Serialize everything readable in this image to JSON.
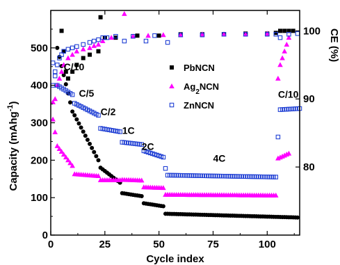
{
  "chart_data": {
    "type": "scatter",
    "xlabel": "Cycle index",
    "ylabel_left": "Capacity (mAhg⁻¹)",
    "ylabel_right": "CE (%)",
    "xlim": [
      0,
      115
    ],
    "ylim_left": [
      0,
      600
    ],
    "ylim_right": [
      70,
      103
    ],
    "x_ticks": [
      0,
      25,
      50,
      75,
      100
    ],
    "y_ticks_left": [
      0,
      100,
      200,
      300,
      400,
      500
    ],
    "y_ticks_right": [
      80,
      90,
      100
    ],
    "rate_labels": [
      {
        "text": "C/10",
        "x": 6,
        "y": 440
      },
      {
        "text": "C/5",
        "x": 13,
        "y": 370
      },
      {
        "text": "C/2",
        "x": 23,
        "y": 320
      },
      {
        "text": "1C",
        "x": 33,
        "y": 270
      },
      {
        "text": "2C",
        "x": 42,
        "y": 228
      },
      {
        "text": "4C",
        "x": 75,
        "y": 196
      },
      {
        "text": "C/10",
        "x": 105,
        "y": 367
      }
    ],
    "series": [
      {
        "name": "PbNCN",
        "marker": "square-filled",
        "color": "#000000",
        "capacity_segments": [
          {
            "start": 3,
            "end": 10,
            "from": 500,
            "to": 330
          },
          {
            "start": 11,
            "end": 22,
            "from": 320,
            "to": 200
          },
          {
            "start": 23,
            "end": 32,
            "from": 180,
            "to": 140
          },
          {
            "start": 33,
            "end": 42,
            "from": 112,
            "to": 104
          },
          {
            "start": 43,
            "end": 52,
            "from": 85,
            "to": 77
          },
          {
            "start": 53,
            "end": 114,
            "from": 57,
            "to": 47
          }
        ],
        "ce_points": [
          {
            "x": 5,
            "y": 100
          },
          {
            "x": 6,
            "y": 97
          },
          {
            "x": 7,
            "y": 94
          },
          {
            "x": 8,
            "y": 93
          },
          {
            "x": 10,
            "y": 94
          },
          {
            "x": 12,
            "y": 95
          },
          {
            "x": 15,
            "y": 96
          },
          {
            "x": 18,
            "y": 96.5
          },
          {
            "x": 22,
            "y": 97
          },
          {
            "x": 23,
            "y": 102
          },
          {
            "x": 25,
            "y": 99
          },
          {
            "x": 30,
            "y": 99
          },
          {
            "x": 40,
            "y": 99.3
          },
          {
            "x": 50,
            "y": 99.3
          },
          {
            "x": 60,
            "y": 99.5
          },
          {
            "x": 70,
            "y": 99.5
          },
          {
            "x": 80,
            "y": 99.5
          },
          {
            "x": 90,
            "y": 99.6
          },
          {
            "x": 100,
            "y": 99.6
          },
          {
            "x": 104,
            "y": 99.7
          },
          {
            "x": 106,
            "y": 100
          },
          {
            "x": 108,
            "y": 100
          },
          {
            "x": 110,
            "y": 100
          },
          {
            "x": 112,
            "y": 100
          }
        ]
      },
      {
        "name": "Ag2NCN",
        "marker": "triangle-filled",
        "color": "#ff00ff",
        "capacity_segments": [
          {
            "start": 1,
            "end": 1,
            "from": 355,
            "to": 355
          },
          {
            "start": 2,
            "end": 2,
            "from": 275,
            "to": 275
          },
          {
            "start": 3,
            "end": 10,
            "from": 238,
            "to": 185
          },
          {
            "start": 11,
            "end": 22,
            "from": 163,
            "to": 158
          },
          {
            "start": 23,
            "end": 32,
            "from": 147,
            "to": 147
          },
          {
            "start": 33,
            "end": 42,
            "from": 148,
            "to": 146
          },
          {
            "start": 43,
            "end": 52,
            "from": 128,
            "to": 126
          },
          {
            "start": 53,
            "end": 104,
            "from": 108,
            "to": 106
          },
          {
            "start": 105,
            "end": 110,
            "from": 205,
            "to": 218
          }
        ],
        "ce_points": [
          {
            "x": 1,
            "y": 87
          },
          {
            "x": 2,
            "y": 90
          },
          {
            "x": 3,
            "y": 92
          },
          {
            "x": 4,
            "y": 93
          },
          {
            "x": 5,
            "y": 94
          },
          {
            "x": 6,
            "y": 95
          },
          {
            "x": 8,
            "y": 96
          },
          {
            "x": 10,
            "y": 96.5
          },
          {
            "x": 12,
            "y": 97
          },
          {
            "x": 15,
            "y": 97.3
          },
          {
            "x": 18,
            "y": 97.5
          },
          {
            "x": 20,
            "y": 97.8
          },
          {
            "x": 22,
            "y": 98
          },
          {
            "x": 24,
            "y": 98.5
          },
          {
            "x": 28,
            "y": 99
          },
          {
            "x": 34,
            "y": 102.5
          },
          {
            "x": 38,
            "y": 99.2
          },
          {
            "x": 45,
            "y": 99.3
          },
          {
            "x": 52,
            "y": 99.4
          },
          {
            "x": 60,
            "y": 99.4
          },
          {
            "x": 70,
            "y": 99.5
          },
          {
            "x": 80,
            "y": 99.5
          },
          {
            "x": 90,
            "y": 99.5
          },
          {
            "x": 100,
            "y": 99.6
          },
          {
            "x": 105,
            "y": 93
          },
          {
            "x": 106,
            "y": 95
          },
          {
            "x": 107,
            "y": 96
          },
          {
            "x": 108,
            "y": 97
          },
          {
            "x": 109,
            "y": 98
          },
          {
            "x": 110,
            "y": 99
          }
        ]
      },
      {
        "name": "ZnNCN",
        "marker": "square-open",
        "color": "#1f3fd4",
        "capacity_segments": [
          {
            "start": 1,
            "end": 1,
            "from": 460,
            "to": 460
          },
          {
            "start": 2,
            "end": 2,
            "from": 425,
            "to": 425
          },
          {
            "start": 3,
            "end": 10,
            "from": 400,
            "to": 375
          },
          {
            "start": 11,
            "end": 22,
            "from": 352,
            "to": 320
          },
          {
            "start": 23,
            "end": 32,
            "from": 285,
            "to": 276
          },
          {
            "start": 33,
            "end": 42,
            "from": 248,
            "to": 242
          },
          {
            "start": 43,
            "end": 52,
            "from": 225,
            "to": 208
          },
          {
            "start": 53,
            "end": 53,
            "from": 178,
            "to": 178
          },
          {
            "start": 54,
            "end": 104,
            "from": 160,
            "to": 155
          },
          {
            "start": 105,
            "end": 105,
            "from": 262,
            "to": 262
          },
          {
            "start": 106,
            "end": 115,
            "from": 335,
            "to": 338
          }
        ],
        "ce_points": [
          {
            "x": 1,
            "y": 92
          },
          {
            "x": 2,
            "y": 94
          },
          {
            "x": 3,
            "y": 95
          },
          {
            "x": 4,
            "y": 96
          },
          {
            "x": 5,
            "y": 96.5
          },
          {
            "x": 6,
            "y": 97
          },
          {
            "x": 8,
            "y": 97.3
          },
          {
            "x": 10,
            "y": 97.5
          },
          {
            "x": 12,
            "y": 97.7
          },
          {
            "x": 15,
            "y": 98
          },
          {
            "x": 18,
            "y": 98.3
          },
          {
            "x": 20,
            "y": 98.5
          },
          {
            "x": 22,
            "y": 98.7
          },
          {
            "x": 24,
            "y": 99
          },
          {
            "x": 26,
            "y": 99
          },
          {
            "x": 30,
            "y": 99.2
          },
          {
            "x": 34,
            "y": 98.5
          },
          {
            "x": 38,
            "y": 99.2
          },
          {
            "x": 44,
            "y": 98.5
          },
          {
            "x": 48,
            "y": 99.3
          },
          {
            "x": 54,
            "y": 98.3
          },
          {
            "x": 60,
            "y": 99.4
          },
          {
            "x": 70,
            "y": 99.4
          },
          {
            "x": 80,
            "y": 99.5
          },
          {
            "x": 90,
            "y": 99.5
          },
          {
            "x": 100,
            "y": 99.5
          },
          {
            "x": 104,
            "y": 99.5
          },
          {
            "x": 106,
            "y": 99
          },
          {
            "x": 110,
            "y": 99.5
          },
          {
            "x": 114,
            "y": 99.6
          }
        ]
      }
    ],
    "legend": [
      {
        "label": "PbNCN",
        "series": 0
      },
      {
        "label": "Ag",
        "sub": "2",
        "rest": "NCN",
        "series": 1
      },
      {
        "label": "ZnNCN",
        "series": 2
      }
    ],
    "legend_position": "center-right",
    "grid": false
  }
}
